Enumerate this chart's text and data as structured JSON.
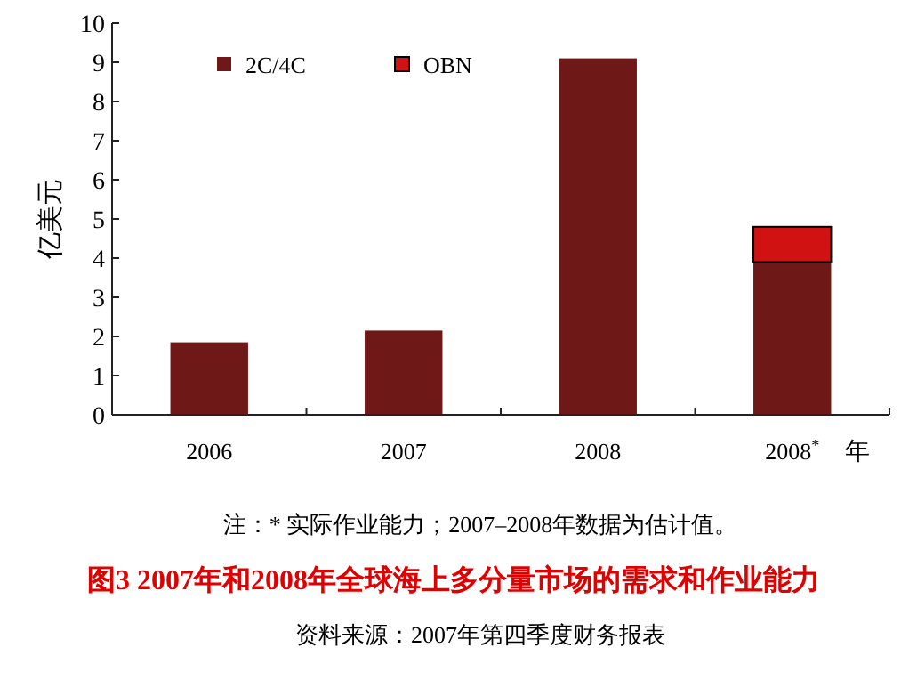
{
  "chart_data": {
    "type": "bar",
    "title": "图3  2007年和2008年全球海上多分量市场的需求和作业能力",
    "ylabel": "亿美元",
    "xlabel": "年",
    "categories": [
      "2006",
      "2007",
      "2008",
      "2008$^{*}$"
    ],
    "stacked": true,
    "series": [
      {
        "name": "2C/4C",
        "color": "#6e1818",
        "values": [
          1.85,
          2.15,
          9.1,
          3.9
        ]
      },
      {
        "name": "OBN",
        "color": "#d01212",
        "values": [
          null,
          null,
          null,
          0.9
        ]
      }
    ],
    "ylim": [
      0,
      10
    ],
    "yticks": [
      0,
      1,
      2,
      3,
      4,
      5,
      6,
      7,
      8,
      9,
      10
    ],
    "grid": false,
    "legend": "top left",
    "annotations": [
      "注：* 实际作业能力；2007–2008年数据为估计值。",
      "资料来源：2007年第四季度财务报表"
    ]
  }
}
